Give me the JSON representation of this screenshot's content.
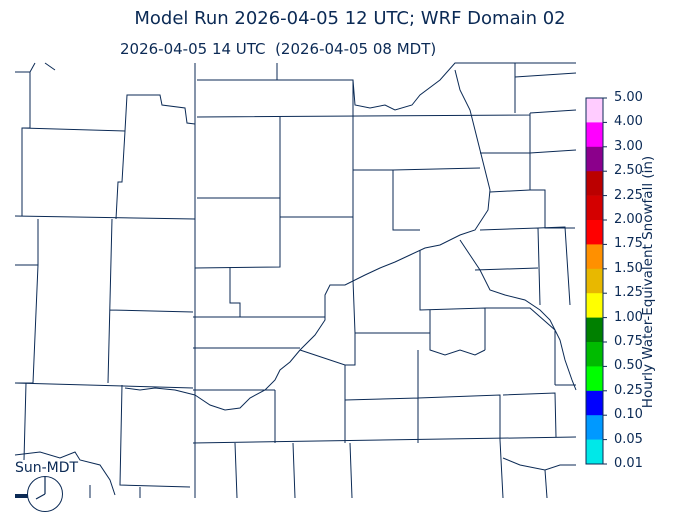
{
  "header": {
    "title": "Model Run 2026-04-05 12 UTC; WRF Domain 02",
    "subtitle": "2026-04-05 14 UTC  (2026-04-05 08 MDT)"
  },
  "colorbar": {
    "label": "Hourly Water-Equivalent Snowfall (in)",
    "ticks": [
      "5.00",
      "4.00",
      "3.00",
      "2.50",
      "2.25",
      "2.00",
      "1.75",
      "1.50",
      "1.25",
      "1.00",
      "0.75",
      "0.50",
      "0.25",
      "0.10",
      "0.05",
      "0.01"
    ],
    "colors": [
      "#ffccff",
      "#ff00ff",
      "#8b008b",
      "#bb0000",
      "#d40000",
      "#ff0000",
      "#ff9000",
      "#e8b800",
      "#ffff00",
      "#008000",
      "#00bb00",
      "#00ff00",
      "#0000ff",
      "#0099ff",
      "#00e8e8"
    ]
  },
  "map": {
    "line_color": "#0b2a55"
  },
  "clock": {
    "label": "Sun-MDT",
    "icon": "clock-icon",
    "time": "08:00"
  }
}
